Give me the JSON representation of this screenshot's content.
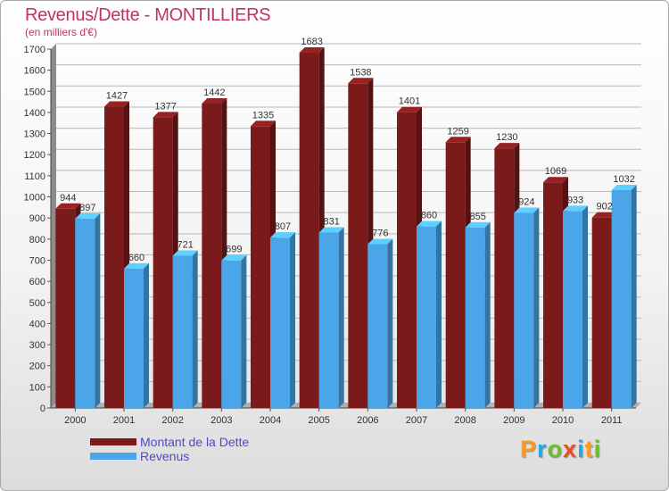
{
  "title": "Revenus/Dette - MONTILLIERS",
  "subtitle": "(en milliers d'€)",
  "brand": {
    "letters": [
      "P",
      "r",
      "o",
      "x",
      "i",
      "t",
      "i"
    ],
    "colors": [
      "#ff9a1e",
      "#2aa8e0",
      "#6cbf2a",
      "#f04e23",
      "#2aa8e0",
      "#ff9a1e",
      "#6cbf2a"
    ]
  },
  "chart_data": {
    "type": "bar",
    "categories": [
      "2000",
      "2001",
      "2002",
      "2003",
      "2004",
      "2005",
      "2006",
      "2007",
      "2008",
      "2009",
      "2010",
      "2011"
    ],
    "series": [
      {
        "name": "Montant de la Dette",
        "color": "#7a1a1a",
        "values": [
          944,
          1427,
          1377,
          1442,
          1335,
          1683,
          1538,
          1401,
          1259,
          1230,
          1069,
          902
        ]
      },
      {
        "name": "Revenus",
        "color": "#4aa6e8",
        "values": [
          897,
          660,
          721,
          699,
          807,
          831,
          776,
          860,
          855,
          924,
          933,
          1032
        ]
      }
    ],
    "ylim": [
      0,
      1700
    ],
    "yticks": [
      0,
      100,
      200,
      300,
      400,
      500,
      600,
      700,
      800,
      900,
      1000,
      1100,
      1200,
      1300,
      1400,
      1500,
      1600,
      1700
    ],
    "grid": true,
    "legend": "bottom-left"
  }
}
